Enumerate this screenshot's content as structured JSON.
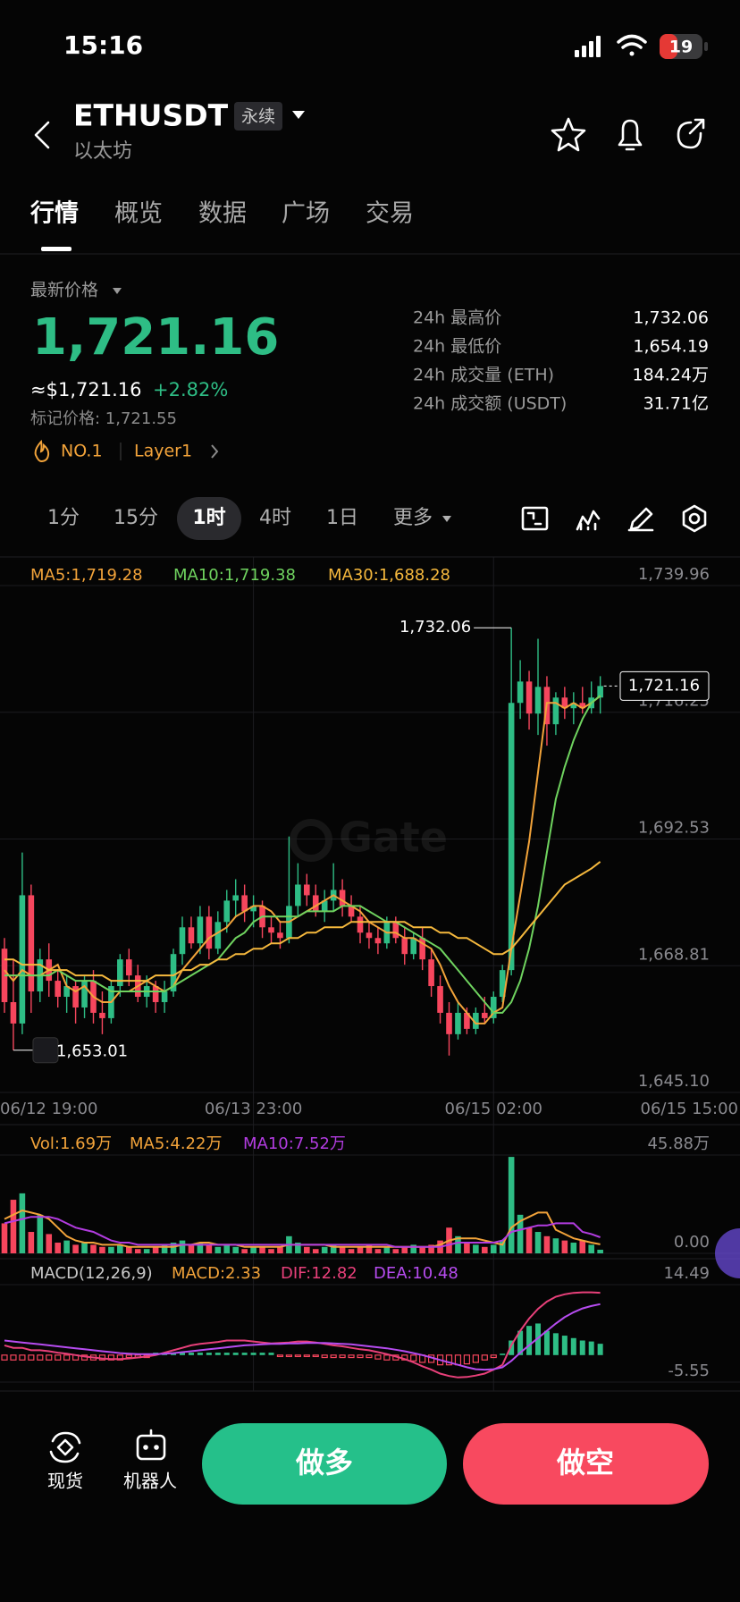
{
  "status_bar": {
    "time": "15:16",
    "battery": "19"
  },
  "header": {
    "symbol": "ETHUSDT",
    "badge": "永续",
    "name": "以太坊"
  },
  "tabs": [
    "行情",
    "概览",
    "数据",
    "广场",
    "交易"
  ],
  "price": {
    "label": "最新价格",
    "last": "1,721.16",
    "usd": "≈$1,721.16",
    "change": "+2.82%",
    "mark": "标记价格: 1,721.55"
  },
  "tags": [
    "NO.1",
    "Layer1"
  ],
  "stats": [
    {
      "label": "24h 最高价",
      "value": "1,732.06"
    },
    {
      "label": "24h 最低价",
      "value": "1,654.19"
    },
    {
      "label": "24h 成交量 (ETH)",
      "value": "184.24万"
    },
    {
      "label": "24h 成交额 (USDT)",
      "value": "31.71亿"
    }
  ],
  "timeframes": [
    "1分",
    "15分",
    "1时",
    "4时",
    "1日",
    "更多"
  ],
  "selected_timeframe": "1时",
  "actions": {
    "spot": "现货",
    "bot": "机器人",
    "long": "做多",
    "short": "做空"
  },
  "chart_data": [
    {
      "type": "candlestick",
      "up_color": "#2ebd85",
      "down_color": "#f6465d",
      "grid": true,
      "watermark": "Gate",
      "ohlc": [
        [
          1672,
          1674,
          1660,
          1662
        ],
        [
          1662,
          1670,
          1653.01,
          1658
        ],
        [
          1658,
          1690,
          1656,
          1682
        ],
        [
          1682,
          1684,
          1660,
          1664
        ],
        [
          1664,
          1672,
          1662,
          1670
        ],
        [
          1670,
          1673,
          1663,
          1666
        ],
        [
          1666,
          1668,
          1661,
          1663
        ],
        [
          1663,
          1667,
          1660,
          1665
        ],
        [
          1665,
          1666,
          1658,
          1661
        ],
        [
          1661,
          1667,
          1659,
          1666
        ],
        [
          1666,
          1668,
          1658,
          1660
        ],
        [
          1660,
          1664,
          1656,
          1659
        ],
        [
          1659,
          1666,
          1658,
          1665
        ],
        [
          1665,
          1671,
          1663,
          1670
        ],
        [
          1670,
          1672,
          1665,
          1667
        ],
        [
          1667,
          1669,
          1662,
          1663
        ],
        [
          1663,
          1667,
          1661,
          1665
        ],
        [
          1665,
          1666,
          1660,
          1662
        ],
        [
          1662,
          1666,
          1660,
          1664
        ],
        [
          1664,
          1672,
          1663,
          1671
        ],
        [
          1671,
          1678,
          1669,
          1676
        ],
        [
          1676,
          1678,
          1672,
          1673
        ],
        [
          1673,
          1680,
          1671,
          1678
        ],
        [
          1678,
          1680,
          1670,
          1672
        ],
        [
          1672,
          1679,
          1671,
          1677
        ],
        [
          1677,
          1683,
          1675,
          1681
        ],
        [
          1681,
          1685,
          1678,
          1682
        ],
        [
          1682,
          1684,
          1677,
          1679
        ],
        [
          1679,
          1682,
          1676,
          1680
        ],
        [
          1680,
          1681,
          1674,
          1676
        ],
        [
          1676,
          1678,
          1673,
          1675
        ],
        [
          1675,
          1677,
          1672,
          1674
        ],
        [
          1674,
          1693,
          1673,
          1680
        ],
        [
          1680,
          1688,
          1678,
          1684
        ],
        [
          1684,
          1686,
          1680,
          1682
        ],
        [
          1682,
          1684,
          1678,
          1679
        ],
        [
          1679,
          1683,
          1677,
          1681
        ],
        [
          1681,
          1688,
          1679,
          1683
        ],
        [
          1683,
          1685,
          1678,
          1680
        ],
        [
          1680,
          1682,
          1677,
          1678
        ],
        [
          1678,
          1680,
          1673,
          1675
        ],
        [
          1675,
          1677,
          1672,
          1674
        ],
        [
          1674,
          1676,
          1671,
          1673
        ],
        [
          1673,
          1678,
          1672,
          1677
        ],
        [
          1677,
          1678,
          1673,
          1674
        ],
        [
          1674,
          1676,
          1669,
          1671
        ],
        [
          1671,
          1675,
          1670,
          1674
        ],
        [
          1674,
          1676,
          1668,
          1670
        ],
        [
          1670,
          1672,
          1663,
          1665
        ],
        [
          1665,
          1667,
          1658,
          1660
        ],
        [
          1660,
          1662,
          1652,
          1656
        ],
        [
          1656,
          1662,
          1655,
          1660
        ],
        [
          1660,
          1661,
          1656,
          1657
        ],
        [
          1657,
          1661,
          1656,
          1660
        ],
        [
          1660,
          1663,
          1658,
          1659
        ],
        [
          1659,
          1664,
          1658,
          1663
        ],
        [
          1663,
          1669,
          1662,
          1668
        ],
        [
          1668,
          1732.06,
          1667,
          1718
        ],
        [
          1718,
          1726,
          1715,
          1722
        ],
        [
          1722,
          1724,
          1713,
          1716
        ],
        [
          1716,
          1730,
          1712,
          1721
        ],
        [
          1721,
          1723,
          1710,
          1714
        ],
        [
          1714,
          1720,
          1712,
          1719
        ],
        [
          1719,
          1721,
          1715,
          1717
        ],
        [
          1717,
          1720,
          1714,
          1718
        ],
        [
          1718,
          1721,
          1716,
          1717
        ],
        [
          1717,
          1722,
          1716,
          1719
        ],
        [
          1719,
          1723,
          1716,
          1721.16
        ]
      ],
      "series": [
        {
          "name": "MA5:1,719.28",
          "color": "#f2a33a",
          "values": [
            1668,
            1666,
            1668,
            1667,
            1667,
            1668,
            1669,
            1665,
            1664,
            1665,
            1663,
            1662,
            1662,
            1664,
            1664,
            1665,
            1666,
            1665,
            1664,
            1665,
            1668,
            1670,
            1672,
            1674,
            1675,
            1676,
            1678,
            1679,
            1680,
            1680,
            1679,
            1677,
            1677,
            1678,
            1679,
            1680,
            1681,
            1682,
            1681,
            1680,
            1679,
            1677,
            1676,
            1675,
            1675,
            1674,
            1674,
            1673,
            1672,
            1669,
            1665,
            1662,
            1660,
            1658,
            1658,
            1660,
            1661,
            1672,
            1682,
            1692,
            1705,
            1718,
            1718,
            1717,
            1718,
            1717,
            1718,
            1719.28
          ]
        },
        {
          "name": "MA10:1,719.38",
          "color": "#6fd35f",
          "values": [
            1667,
            1667,
            1667,
            1667,
            1667,
            1667,
            1668,
            1667,
            1666,
            1666,
            1666,
            1665,
            1664,
            1664,
            1664,
            1664,
            1664,
            1664,
            1664,
            1665,
            1666,
            1667,
            1668,
            1669,
            1670,
            1672,
            1674,
            1675,
            1677,
            1678,
            1678,
            1678,
            1678,
            1678,
            1679,
            1679,
            1679,
            1679,
            1680,
            1680,
            1680,
            1679,
            1678,
            1677,
            1677,
            1676,
            1675,
            1674,
            1673,
            1672,
            1670,
            1668,
            1666,
            1664,
            1662,
            1660,
            1660,
            1662,
            1666,
            1672,
            1680,
            1690,
            1700,
            1706,
            1711,
            1715,
            1718,
            1719.38
          ]
        },
        {
          "name": "MA30:1,688.28",
          "color": "#f5b83d",
          "values": [
            1670,
            1670,
            1669,
            1669,
            1669,
            1668,
            1668,
            1668,
            1667,
            1667,
            1667,
            1667,
            1666,
            1666,
            1666,
            1666,
            1666,
            1667,
            1667,
            1667,
            1668,
            1668,
            1669,
            1669,
            1670,
            1670,
            1671,
            1671,
            1672,
            1672,
            1673,
            1673,
            1674,
            1674,
            1675,
            1675,
            1676,
            1676,
            1676,
            1677,
            1677,
            1677,
            1677,
            1677,
            1677,
            1677,
            1676,
            1676,
            1676,
            1675,
            1675,
            1674,
            1674,
            1673,
            1672,
            1671,
            1671,
            1672,
            1674,
            1676,
            1678,
            1680,
            1682,
            1684,
            1685,
            1686,
            1687,
            1688.28
          ]
        }
      ],
      "ylim": [
        1645.1,
        1739.96
      ],
      "yticks": [
        {
          "value": 1739.96,
          "label": "1,739.96"
        },
        {
          "value": 1716.25,
          "label": "1,716.25"
        },
        {
          "value": 1692.53,
          "label": "1,692.53"
        },
        {
          "value": 1668.81,
          "label": "1,668.81"
        },
        {
          "value": 1645.1,
          "label": "1,645.10"
        }
      ],
      "xticks": [
        {
          "value": 0,
          "label": "06/12 19:00"
        },
        {
          "value": 28,
          "label": "06/13 23:00"
        },
        {
          "value": 55,
          "label": "06/15 02:00"
        },
        {
          "value": 68,
          "label": "06/15 15:00"
        }
      ],
      "high": {
        "value": 1732.06,
        "label": "1,732.06"
      },
      "low": {
        "value": 1653.01,
        "label": "1,653.01"
      },
      "last": {
        "value": 1721.16,
        "label": "1,721.16"
      }
    },
    {
      "type": "bar",
      "series": [
        {
          "name": "Vol:1.69万",
          "color": "#f2a33a",
          "values": [
            14,
            25,
            28,
            10,
            18,
            9,
            5,
            6,
            4,
            5,
            4,
            3,
            3,
            4,
            3,
            2,
            2,
            3,
            4,
            5,
            6,
            4,
            5,
            4,
            3,
            4,
            3,
            2,
            3,
            3,
            2,
            3,
            8,
            5,
            3,
            2,
            3,
            4,
            3,
            2,
            3,
            4,
            2,
            3,
            2,
            3,
            4,
            3,
            4,
            6,
            12,
            8,
            5,
            4,
            3,
            4,
            6,
            45,
            18,
            12,
            10,
            8,
            7,
            6,
            5,
            6,
            4,
            1.69
          ]
        },
        {
          "name": "MA5:4.22万",
          "color": "#f2a33a",
          "values": [
            16,
            18,
            20,
            19,
            18,
            16,
            12,
            8,
            6,
            5,
            5,
            4,
            4,
            4,
            3,
            3,
            3,
            3,
            3,
            3,
            4,
            4,
            5,
            5,
            4,
            4,
            4,
            3,
            3,
            3,
            3,
            3,
            4,
            4,
            4,
            4,
            4,
            3,
            3,
            3,
            3,
            3,
            3,
            3,
            3,
            3,
            3,
            3,
            3,
            4,
            6,
            7,
            7,
            7,
            6,
            5,
            4,
            12,
            15,
            17,
            19,
            19,
            11,
            9,
            7,
            6,
            5,
            4.22
          ]
        },
        {
          "name": "MA10:7.52万",
          "color": "#b23ce0",
          "values": [
            14,
            15,
            16,
            17,
            17,
            17,
            16,
            14,
            12,
            11,
            10,
            8,
            6,
            5,
            5,
            4,
            4,
            4,
            4,
            4,
            4,
            4,
            4,
            4,
            4,
            4,
            4,
            4,
            4,
            4,
            4,
            4,
            4,
            4,
            4,
            4,
            4,
            4,
            4,
            4,
            4,
            4,
            4,
            4,
            3,
            3,
            3,
            3,
            3,
            3,
            4,
            5,
            5,
            5,
            5,
            5,
            6,
            10,
            11,
            12,
            13,
            13,
            14,
            14,
            14,
            10,
            9,
            7.52
          ]
        }
      ],
      "ylim": [
        0,
        45.88
      ],
      "yticks": [
        {
          "value": 45.88,
          "label": "45.88万"
        },
        {
          "value": 0,
          "label": "0.00"
        }
      ]
    },
    {
      "type": "macd",
      "title": "MACD(12,26,9)",
      "series": [
        {
          "name": "MACD:2.33",
          "color": "#f2a33a",
          "values": [
            -1,
            -1,
            -1,
            -1,
            -1,
            -1,
            -1,
            -1,
            -1,
            -1,
            -1,
            -1,
            -1,
            -1,
            -0.5,
            -0.5,
            -0.5,
            0.5,
            0.5,
            0.5,
            0.5,
            0.5,
            0.5,
            0.5,
            0.5,
            0.5,
            0.5,
            0.5,
            0.5,
            0.5,
            0.5,
            -0.3,
            -0.3,
            -0.3,
            -0.3,
            -0.3,
            -0.5,
            -0.5,
            -0.5,
            -0.5,
            -0.5,
            -0.5,
            -0.8,
            -1,
            -1,
            -1,
            -1.2,
            -1.5,
            -1.5,
            -2,
            -2,
            -2,
            -1.8,
            -1.5,
            -1,
            -0.5,
            0.3,
            3,
            5,
            6,
            6.5,
            5,
            4.5,
            4,
            3.5,
            3,
            2.8,
            2.33
          ]
        },
        {
          "name": "DIF:12.82",
          "color": "#e8407a",
          "values": [
            2,
            1.5,
            1.5,
            1,
            1,
            0.8,
            0.5,
            0.3,
            0,
            -0.3,
            -0.5,
            -0.7,
            -0.8,
            -0.8,
            -0.7,
            -0.5,
            -0.3,
            0,
            0.5,
            1,
            1.5,
            2,
            2.3,
            2.5,
            2.7,
            3,
            3,
            3,
            2.8,
            2.6,
            2.4,
            2.5,
            2.6,
            2.8,
            2.8,
            2.6,
            2.3,
            2,
            1.8,
            1.5,
            1.2,
            1,
            0.6,
            0.2,
            -0.3,
            -0.8,
            -1.5,
            -2.3,
            -3,
            -3.8,
            -4.3,
            -4.6,
            -4.5,
            -4.2,
            -3.8,
            -3,
            -2,
            2,
            5,
            7.5,
            9.5,
            11,
            12,
            12.5,
            12.8,
            12.9,
            12.9,
            12.82
          ]
        },
        {
          "name": "DEA:10.48",
          "color": "#b64cf0",
          "values": [
            3,
            2.8,
            2.6,
            2.4,
            2.2,
            2,
            1.8,
            1.6,
            1.4,
            1.2,
            1,
            0.8,
            0.6,
            0.4,
            0.3,
            0.2,
            0.2,
            0.2,
            0.3,
            0.4,
            0.6,
            0.8,
            1,
            1.2,
            1.4,
            1.6,
            1.8,
            2,
            2.1,
            2.2,
            2.3,
            2.3,
            2.4,
            2.4,
            2.5,
            2.5,
            2.5,
            2.4,
            2.3,
            2.2,
            2,
            1.8,
            1.6,
            1.4,
            1.1,
            0.8,
            0.4,
            0,
            -0.5,
            -1,
            -1.5,
            -2,
            -2.5,
            -2.9,
            -3,
            -2.9,
            -2.5,
            -1.2,
            0.5,
            2,
            3.5,
            5,
            6.5,
            7.8,
            8.8,
            9.6,
            10.1,
            10.48
          ]
        }
      ],
      "ylim": [
        -5.55,
        14.49
      ],
      "yticks": [
        14.49,
        -5.55
      ]
    }
  ]
}
